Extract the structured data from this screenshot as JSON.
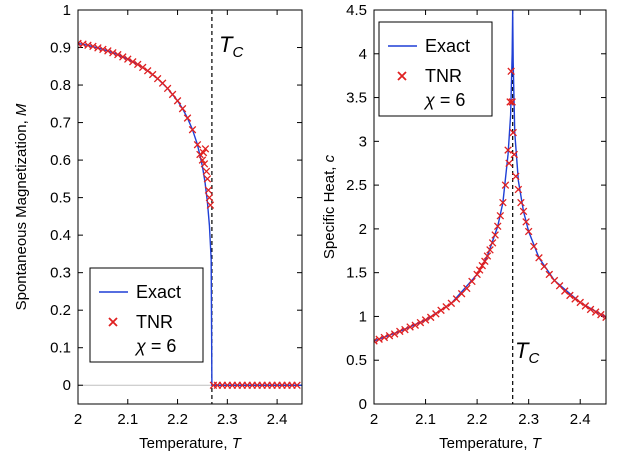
{
  "chart_data": [
    {
      "type": "line",
      "xlabel": "Temperature, T",
      "ylabel": "Spontaneous Magnetization, M",
      "xlim": [
        2.0,
        2.45
      ],
      "ylim": [
        -0.05,
        1.0
      ],
      "xticks": [
        "2",
        "2.1",
        "2.2",
        "2.3",
        "2.4"
      ],
      "yticks": [
        "0",
        "0.1",
        "0.2",
        "0.3",
        "0.4",
        "0.5",
        "0.6",
        "0.7",
        "0.8",
        "0.9",
        "1"
      ],
      "tc": 2.269,
      "tc_label": "T_C",
      "legend_position": "bottom-left",
      "legend": {
        "exact": "Exact",
        "tnr": "TNR",
        "chi": "χ = 6"
      },
      "series": [
        {
          "name": "Exact",
          "color": "#1f3fd6",
          "x": [
            2.0,
            2.02,
            2.04,
            2.06,
            2.08,
            2.1,
            2.12,
            2.14,
            2.16,
            2.18,
            2.2,
            2.21,
            2.22,
            2.23,
            2.24,
            2.25,
            2.255,
            2.26,
            2.264,
            2.2675,
            2.269,
            2.269,
            2.3,
            2.35,
            2.4,
            2.45
          ],
          "y": [
            0.911,
            0.906,
            0.899,
            0.891,
            0.881,
            0.869,
            0.855,
            0.838,
            0.817,
            0.791,
            0.758,
            0.737,
            0.712,
            0.681,
            0.641,
            0.583,
            0.543,
            0.488,
            0.426,
            0.336,
            0.0,
            0.0,
            0.0,
            0.0,
            0.0,
            0.0
          ]
        },
        {
          "name": "TNR",
          "color": "#e02020",
          "x": [
            2.0,
            2.01,
            2.02,
            2.03,
            2.04,
            2.05,
            2.06,
            2.07,
            2.08,
            2.09,
            2.1,
            2.11,
            2.12,
            2.13,
            2.14,
            2.15,
            2.16,
            2.17,
            2.18,
            2.19,
            2.2,
            2.21,
            2.22,
            2.23,
            2.24,
            2.245,
            2.25,
            2.252,
            2.254,
            2.256,
            2.258,
            2.26,
            2.262,
            2.264,
            2.266,
            2.272,
            2.28,
            2.29,
            2.3,
            2.31,
            2.32,
            2.33,
            2.34,
            2.35,
            2.36,
            2.37,
            2.38,
            2.39,
            2.4,
            2.41,
            2.42,
            2.43,
            2.44
          ],
          "y": [
            0.911,
            0.909,
            0.906,
            0.903,
            0.899,
            0.895,
            0.891,
            0.886,
            0.881,
            0.875,
            0.869,
            0.862,
            0.855,
            0.847,
            0.838,
            0.828,
            0.817,
            0.805,
            0.791,
            0.775,
            0.758,
            0.737,
            0.712,
            0.681,
            0.641,
            0.615,
            0.6,
            0.62,
            0.59,
            0.63,
            0.57,
            0.55,
            0.52,
            0.5,
            0.48,
            0.0,
            0.0,
            0.0,
            0.0,
            0.0,
            0.0,
            0.0,
            0.0,
            0.0,
            0.0,
            0.0,
            0.0,
            0.0,
            0.0,
            0.0,
            0.0,
            0.0,
            0.0
          ]
        }
      ]
    },
    {
      "type": "line",
      "xlabel": "Temperature, T",
      "ylabel": "Specific Heat, c",
      "xlim": [
        2.0,
        2.45
      ],
      "ylim": [
        0,
        4.5
      ],
      "xticks": [
        "2",
        "2.1",
        "2.2",
        "2.3",
        "2.4"
      ],
      "yticks": [
        "0",
        "0.5",
        "1",
        "1.5",
        "2",
        "2.5",
        "3",
        "3.5",
        "4",
        "4.5"
      ],
      "tc": 2.269,
      "tc_label": "T_C",
      "legend_position": "top-left",
      "legend": {
        "exact": "Exact",
        "tnr": "TNR",
        "chi": "χ = 6"
      },
      "series": [
        {
          "name": "Exact",
          "color": "#1f3fd6",
          "x": [
            2.0,
            2.05,
            2.1,
            2.15,
            2.2,
            2.22,
            2.24,
            2.25,
            2.26,
            2.265,
            2.268,
            2.269,
            2.269,
            2.27,
            2.273,
            2.28,
            2.29,
            2.3,
            2.32,
            2.35,
            2.4,
            2.45
          ],
          "y": [
            0.72,
            0.83,
            0.96,
            1.15,
            1.48,
            1.69,
            2.03,
            2.3,
            2.85,
            3.3,
            4.0,
            4.5,
            4.5,
            3.9,
            3.1,
            2.55,
            2.2,
            1.97,
            1.67,
            1.41,
            1.16,
            0.99
          ]
        },
        {
          "name": "TNR",
          "color": "#e02020",
          "x": [
            2.0,
            2.01,
            2.02,
            2.03,
            2.04,
            2.05,
            2.06,
            2.07,
            2.08,
            2.09,
            2.1,
            2.11,
            2.12,
            2.13,
            2.14,
            2.15,
            2.16,
            2.17,
            2.18,
            2.19,
            2.2,
            2.205,
            2.21,
            2.215,
            2.22,
            2.225,
            2.23,
            2.235,
            2.24,
            2.245,
            2.25,
            2.255,
            2.26,
            2.262,
            2.264,
            2.266,
            2.268,
            2.27,
            2.272,
            2.275,
            2.28,
            2.285,
            2.29,
            2.295,
            2.3,
            2.31,
            2.32,
            2.33,
            2.34,
            2.35,
            2.36,
            2.37,
            2.38,
            2.39,
            2.4,
            2.41,
            2.42,
            2.43,
            2.44,
            2.45
          ],
          "y": [
            0.72,
            0.74,
            0.76,
            0.78,
            0.8,
            0.83,
            0.85,
            0.88,
            0.9,
            0.93,
            0.96,
            0.99,
            1.03,
            1.07,
            1.11,
            1.15,
            1.2,
            1.26,
            1.32,
            1.4,
            1.48,
            1.53,
            1.58,
            1.63,
            1.69,
            1.76,
            1.84,
            1.93,
            2.03,
            2.15,
            2.3,
            2.5,
            2.9,
            2.75,
            3.45,
            3.8,
            3.45,
            3.1,
            2.85,
            2.6,
            2.45,
            2.3,
            2.2,
            2.08,
            1.97,
            1.8,
            1.67,
            1.57,
            1.48,
            1.41,
            1.35,
            1.29,
            1.24,
            1.2,
            1.16,
            1.12,
            1.08,
            1.05,
            1.02,
            0.99
          ]
        }
      ]
    }
  ]
}
